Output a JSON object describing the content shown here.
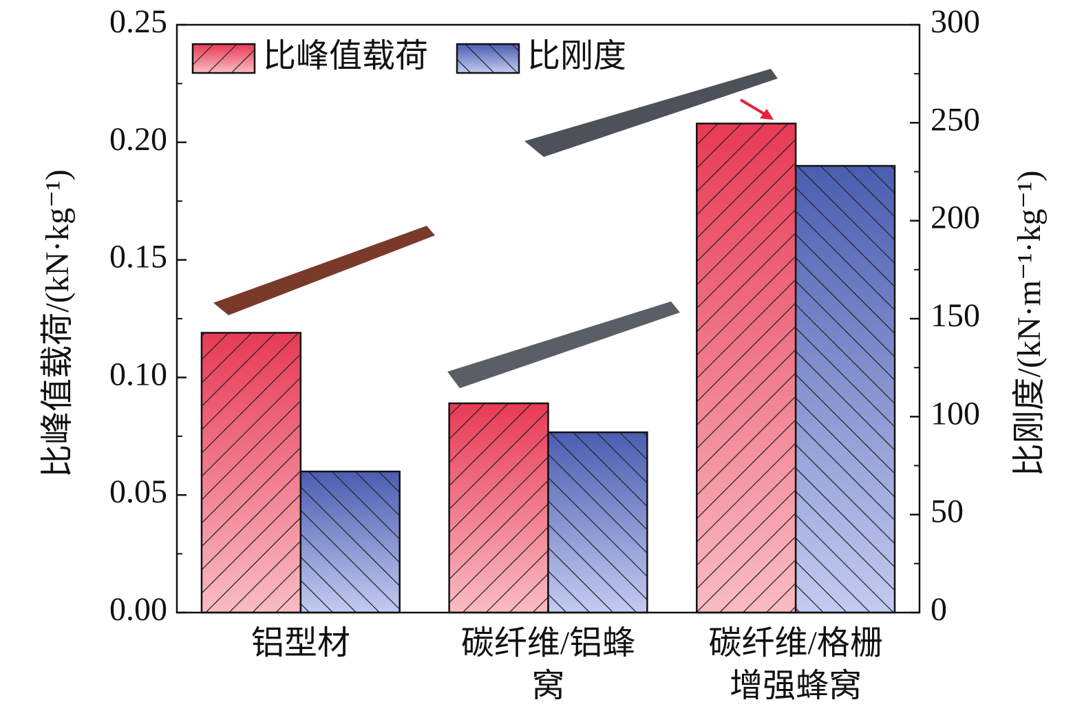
{
  "chart_data": {
    "type": "bar",
    "categories": [
      "铝型材",
      "碳纤维/铝蜂窝",
      "碳纤维/格栅增强蜂窝"
    ],
    "series": [
      {
        "name": "比峰值载荷",
        "color": "#e83a55",
        "values": [
          0.119,
          0.089,
          0.208
        ]
      },
      {
        "name": "比刚度",
        "color": "#4a5db0",
        "axis": "y2",
        "values": [
          72,
          92,
          228
        ]
      }
    ],
    "ylabel": "比峰值载荷/(kN·kg⁻¹)",
    "y2label": "比刚度/(kN·m⁻¹·kg⁻¹)",
    "ylim": [
      0,
      0.25
    ],
    "yticks": [
      {
        "value": 0,
        "label": "0.00"
      },
      0.05,
      {
        "value": 0.1,
        "label": "0.10"
      },
      0.15,
      {
        "value": 0.2,
        "label": "0.20"
      },
      0.25
    ],
    "y2lim": [
      0,
      300
    ],
    "y2ticks": [
      0,
      50,
      100,
      150,
      200,
      250,
      300
    ],
    "legend": "upper left"
  }
}
